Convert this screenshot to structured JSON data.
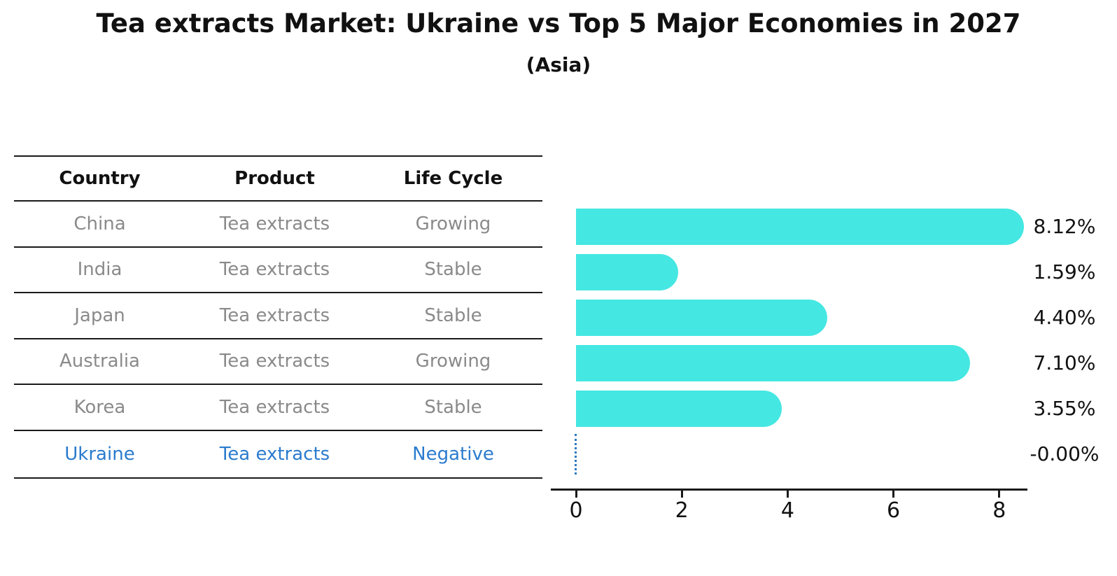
{
  "title": "Tea extracts Market: Ukraine vs Top 5 Major Economies in 2027",
  "subtitle": "(Asia)",
  "table": {
    "columns": [
      "Country",
      "Product",
      "Life Cycle"
    ],
    "rows": [
      {
        "country": "China",
        "product": "Tea extracts",
        "life_cycle": "Growing",
        "highlight": false
      },
      {
        "country": "India",
        "product": "Tea extracts",
        "life_cycle": "Stable",
        "highlight": false
      },
      {
        "country": "Japan",
        "product": "Tea extracts",
        "life_cycle": "Stable",
        "highlight": false
      },
      {
        "country": "Australia",
        "product": "Tea extracts",
        "life_cycle": "Growing",
        "highlight": false
      },
      {
        "country": "Korea",
        "product": "Tea extracts",
        "life_cycle": "Stable",
        "highlight": false
      },
      {
        "country": "Ukraine",
        "product": "Tea extracts",
        "life_cycle": "Negative",
        "highlight": true
      }
    ]
  },
  "chart_data": {
    "type": "bar",
    "orientation": "horizontal",
    "title": "Tea extracts Market: Ukraine vs Top 5 Major Economies in 2027",
    "subtitle": "(Asia)",
    "categories": [
      "China",
      "India",
      "Japan",
      "Australia",
      "Korea",
      "Ukraine"
    ],
    "values": [
      8.12,
      1.59,
      4.4,
      7.1,
      3.55,
      -0.0
    ],
    "value_labels": [
      "8.12%",
      "1.59%",
      "4.40%",
      "7.10%",
      "3.55%",
      "-0.00%"
    ],
    "xticks": [
      0,
      2,
      4,
      6,
      8
    ],
    "xlim": [
      0,
      8.6
    ],
    "xlabel": "",
    "ylabel": "",
    "grid": false,
    "legend": null,
    "bar_color": "#45E7E2",
    "highlight_marker": "dotted-line-at-zero",
    "highlight_color": "#2E79C0"
  },
  "colors": {
    "title_text": "#111111",
    "table_text": "#8a8a8a",
    "table_header_text": "#111111",
    "highlight_text": "#2B7BCE",
    "axis_line": "#1a1a1a"
  }
}
